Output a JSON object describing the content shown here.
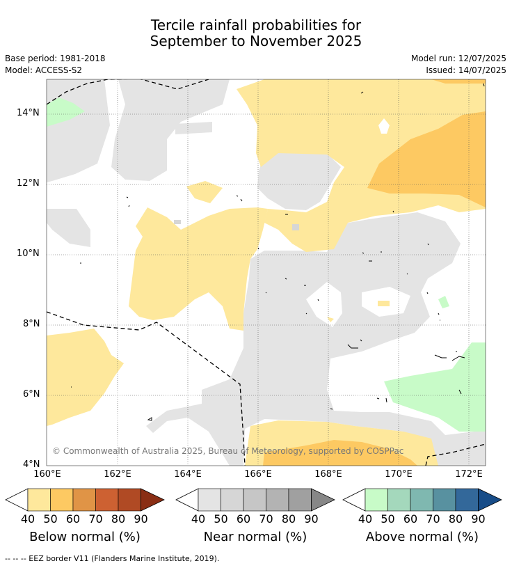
{
  "title_line1": "Tercile rainfall probabilities for",
  "title_line2": "September to November 2025",
  "base_period": "Base period: 1981-2018",
  "model": "Model: ACCESS-S2",
  "model_run": "Model run: 12/07/2025",
  "issued": "Issued: 14/07/2025",
  "copyright": "© Commonwealth of Australia 2025, Bureau of Meteorology, supported by COSPPac",
  "lat_labels": [
    "14°N",
    "12°N",
    "10°N",
    "8°N",
    "6°N",
    "4°N"
  ],
  "lon_labels": [
    "160°E",
    "162°E",
    "164°E",
    "166°E",
    "168°E",
    "170°E",
    "172°E"
  ],
  "colorbars": {
    "below": {
      "label": "Below normal (%)",
      "ticks": [
        "40",
        "50",
        "60",
        "70",
        "80",
        "90"
      ],
      "colors": [
        "#fee89c",
        "#fdc962",
        "#e09446",
        "#cd6132",
        "#b04a24",
        "#8a2e14"
      ]
    },
    "near": {
      "label": "Near normal (%)",
      "ticks": [
        "40",
        "50",
        "60",
        "70",
        "80",
        "90"
      ],
      "colors": [
        "#e4e4e4",
        "#d6d6d6",
        "#c6c6c6",
        "#b3b3b3",
        "#a0a0a0",
        "#878787"
      ]
    },
    "above": {
      "label": "Above normal (%)",
      "ticks": [
        "40",
        "50",
        "60",
        "70",
        "80",
        "90"
      ],
      "colors": [
        "#c8fbc8",
        "#a4d8bc",
        "#7fb8b0",
        "#5891a0",
        "#33689a",
        "#174c88"
      ]
    }
  },
  "footer": "--  --  -- EEZ border V11 (Flanders Marine Institute, 2019)."
}
